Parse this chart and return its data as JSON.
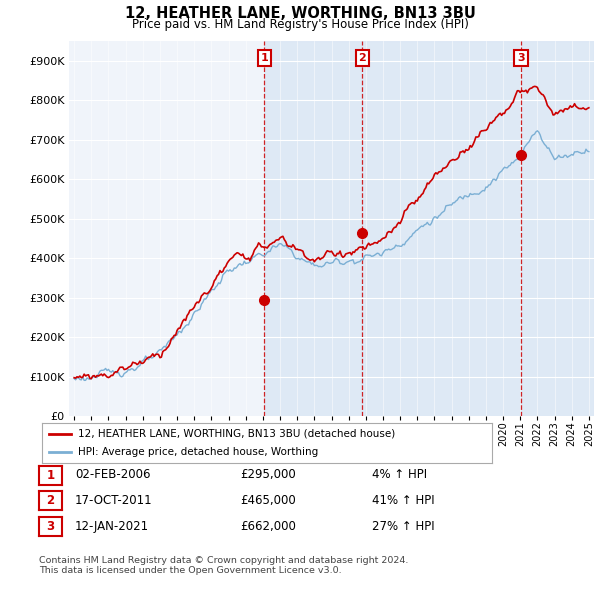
{
  "title": "12, HEATHER LANE, WORTHING, BN13 3BU",
  "subtitle": "Price paid vs. HM Land Registry's House Price Index (HPI)",
  "ylabel_ticks": [
    "£0",
    "£100K",
    "£200K",
    "£300K",
    "£400K",
    "£500K",
    "£600K",
    "£700K",
    "£800K",
    "£900K"
  ],
  "ytick_values": [
    0,
    100000,
    200000,
    300000,
    400000,
    500000,
    600000,
    700000,
    800000,
    900000
  ],
  "ylim": [
    0,
    950000
  ],
  "xlim_start": 1994.7,
  "xlim_end": 2025.3,
  "purchase_dates": [
    2006.08,
    2011.8,
    2021.04
  ],
  "purchase_prices": [
    295000,
    465000,
    662000
  ],
  "purchase_labels": [
    "1",
    "2",
    "3"
  ],
  "legend_line1": "12, HEATHER LANE, WORTHING, BN13 3BU (detached house)",
  "legend_line2": "HPI: Average price, detached house, Worthing",
  "table_data": [
    [
      "1",
      "02-FEB-2006",
      "£295,000",
      "4% ↑ HPI"
    ],
    [
      "2",
      "17-OCT-2011",
      "£465,000",
      "41% ↑ HPI"
    ],
    [
      "3",
      "12-JAN-2021",
      "£662,000",
      "27% ↑ HPI"
    ]
  ],
  "footer": "Contains HM Land Registry data © Crown copyright and database right 2024.\nThis data is licensed under the Open Government Licence v3.0.",
  "hpi_color": "#7bafd4",
  "hpi_shade_color": "#dde8f5",
  "property_color": "#cc0000",
  "vline_color": "#cc0000",
  "background_color": "#ffffff",
  "plot_bg_color": "#f0f4fa",
  "grid_color": "#ffffff"
}
